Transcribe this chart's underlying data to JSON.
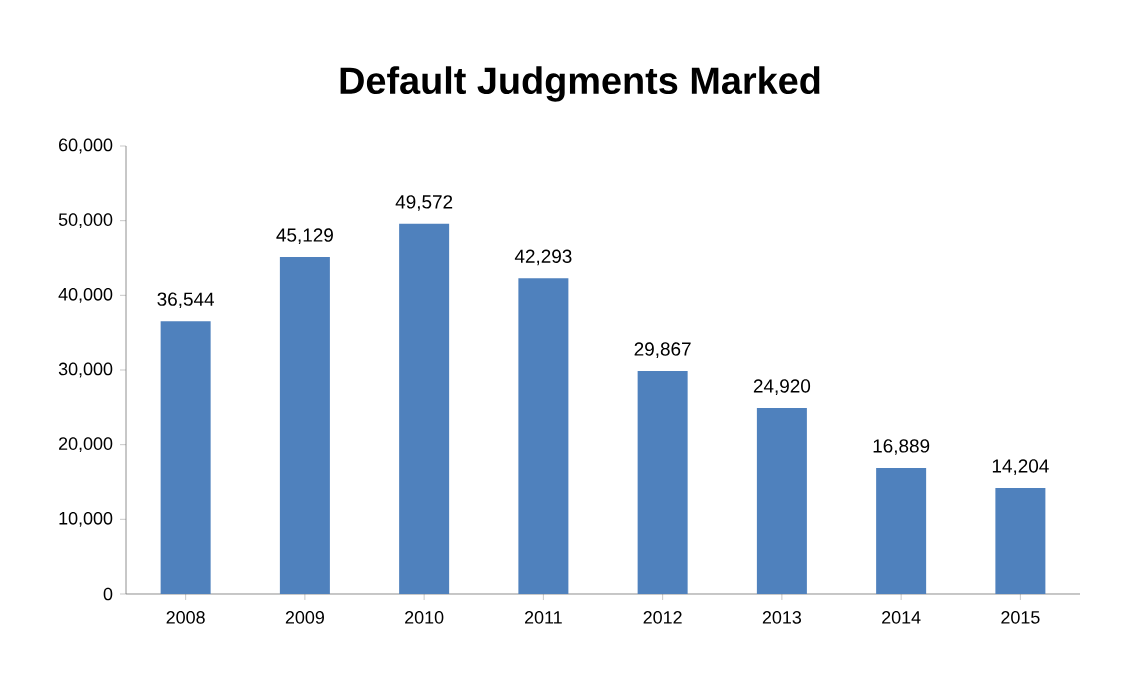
{
  "chart_data": {
    "type": "bar",
    "title": "Default Judgments Marked",
    "categories": [
      "2008",
      "2009",
      "2010",
      "2011",
      "2012",
      "2013",
      "2014",
      "2015"
    ],
    "values": [
      36544,
      45129,
      49572,
      42293,
      29867,
      24920,
      16889,
      14204
    ],
    "value_labels": [
      "36,544",
      "45,129",
      "49,572",
      "42,293",
      "29,867",
      "24,920",
      "16,889",
      "14,204"
    ],
    "color": "#4f81bd",
    "ylim": [
      0,
      60000
    ],
    "yticks": [
      0,
      {
        "value": 10000,
        "label": "10,000"
      },
      {
        "value": 20000,
        "label": "20,000"
      },
      {
        "value": 30000,
        "label": "30,000"
      },
      {
        "value": 40000,
        "label": "40,000"
      },
      {
        "value": 50000,
        "label": "50,000"
      },
      {
        "value": 60000,
        "label": "60,000"
      }
    ],
    "grid": false
  }
}
